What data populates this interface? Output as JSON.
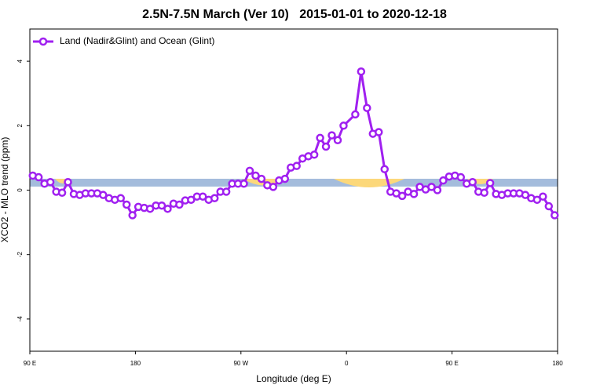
{
  "chart_data": {
    "type": "line",
    "title": "2.5N-7.5N March (Ver 10)   2015-01-01 to 2020-12-18",
    "x_label": "Longitude (deg E)",
    "y_label": "XCO2 - MLO trend (ppm)",
    "xlim": [
      90,
      540
    ],
    "ylim": [
      -5,
      5
    ],
    "xticks": [
      {
        "value": 90,
        "label": "90 E"
      },
      {
        "value": 180,
        "label": "180"
      },
      {
        "value": 270,
        "label": "90 W"
      },
      {
        "value": 360,
        "label": "0"
      },
      {
        "value": 450,
        "label": "90 E"
      },
      {
        "value": 540,
        "label": "180"
      }
    ],
    "yticks": [
      -4,
      -2,
      0,
      2,
      4
    ],
    "legend_position": "top-left",
    "x": [
      92.5,
      97.5,
      102.5,
      107.5,
      112.5,
      117.5,
      122.5,
      127.5,
      132.5,
      137.5,
      142.5,
      147.5,
      152.5,
      157.5,
      162.5,
      167.5,
      172.5,
      177.5,
      182.5,
      187.5,
      192.5,
      197.5,
      202.5,
      207.5,
      212.5,
      217.5,
      222.5,
      227.5,
      232.5,
      237.5,
      242.5,
      247.5,
      252.5,
      257.5,
      262.5,
      267.5,
      272.5,
      277.5,
      282.5,
      287.5,
      292.5,
      297.5,
      302.5,
      307.5,
      312.5,
      317.5,
      322.5,
      327.5,
      332.5,
      337.5,
      342.5,
      347.5,
      352.5,
      357.5,
      367.5,
      372.5,
      377.5,
      382.5,
      387.5,
      392.5,
      397.5,
      402.5,
      407.5,
      412.5,
      417.5,
      422.5,
      427.5,
      432.5,
      437.5,
      442.5,
      447.5,
      452.5,
      457.5,
      462.5,
      467.5,
      472.5,
      477.5,
      482.5,
      487.5,
      492.5,
      497.5,
      502.5,
      507.5,
      512.5,
      517.5,
      522.5,
      527.5,
      532.5,
      537.5
    ],
    "series": [
      {
        "name": "Land (Nadir&Glint) and Ocean (Glint)",
        "color": "#a020f0",
        "values": [
          0.45,
          0.4,
          0.2,
          0.25,
          -0.05,
          -0.08,
          0.25,
          -0.12,
          -0.15,
          -0.1,
          -0.1,
          -0.1,
          -0.15,
          -0.25,
          -0.3,
          -0.25,
          -0.45,
          -0.78,
          -0.52,
          -0.55,
          -0.58,
          -0.48,
          -0.48,
          -0.58,
          -0.42,
          -0.45,
          -0.32,
          -0.3,
          -0.2,
          -0.2,
          -0.3,
          -0.25,
          -0.05,
          -0.05,
          0.2,
          0.2,
          0.2,
          0.6,
          0.45,
          0.35,
          0.15,
          0.1,
          0.3,
          0.35,
          0.7,
          0.75,
          0.98,
          1.05,
          1.1,
          1.62,
          1.35,
          1.7,
          1.55,
          2.0,
          2.35,
          3.68,
          2.55,
          1.75,
          1.8,
          0.65,
          -0.05,
          -0.1,
          -0.18,
          -0.05,
          -0.12,
          0.1,
          0.02,
          0.1,
          0.0,
          0.3,
          0.42,
          0.45,
          0.4,
          0.2,
          0.25,
          -0.05,
          -0.08,
          0.22,
          -0.12,
          -0.15,
          -0.1,
          -0.1,
          -0.1,
          -0.15,
          -0.25,
          -0.3,
          -0.2,
          -0.5,
          -0.78
        ]
      }
    ]
  }
}
